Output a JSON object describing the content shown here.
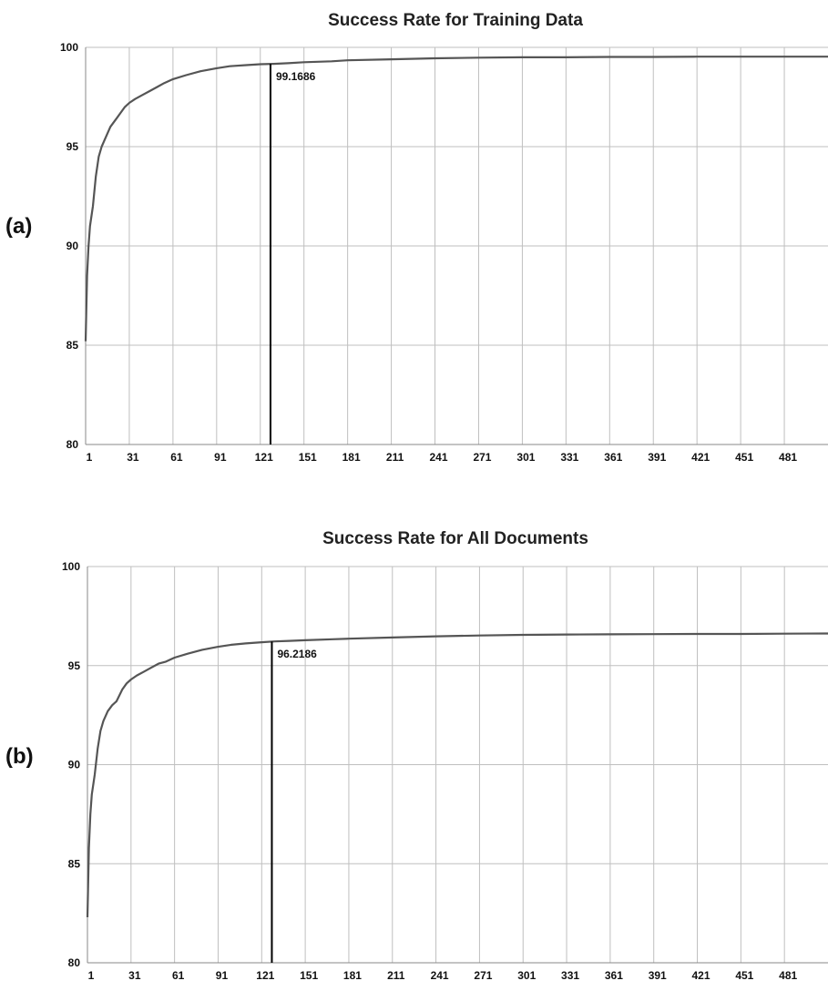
{
  "panels": [
    {
      "label": "(a)",
      "annotation_label": "99.1686"
    },
    {
      "label": "(b)",
      "annotation_label": "96.2186"
    }
  ],
  "chart_data": [
    {
      "type": "line",
      "title": "Success Rate for Training Data",
      "xlabel": "",
      "ylabel": "",
      "ylim": [
        80,
        100
      ],
      "xlim": [
        1,
        511
      ],
      "yticks": [
        "80",
        "85",
        "90",
        "95",
        "100"
      ],
      "xticks": [
        "1",
        "31",
        "61",
        "91",
        "121",
        "151",
        "181",
        "211",
        "241",
        "271",
        "301",
        "331",
        "361",
        "391",
        "421",
        "451",
        "481"
      ],
      "grid": true,
      "line_color": "#555555",
      "marker_line_color": "#000000",
      "series": [
        {
          "x": [
            1,
            2,
            3,
            4,
            5,
            6,
            8,
            10,
            12,
            15,
            18,
            21,
            25,
            28,
            31,
            35,
            40,
            45,
            50,
            55,
            61,
            70,
            80,
            91,
            100,
            110,
            121,
            130,
            140,
            151,
            170,
            181,
            211,
            241,
            271,
            301,
            331,
            361,
            391,
            421,
            451,
            481,
            511
          ],
          "y": [
            85.2,
            88.5,
            90.0,
            91.0,
            91.5,
            92.0,
            93.5,
            94.5,
            95.0,
            95.5,
            96.0,
            96.3,
            96.7,
            97.0,
            97.2,
            97.4,
            97.6,
            97.8,
            98.0,
            98.2,
            98.4,
            98.6,
            98.8,
            98.95,
            99.05,
            99.1,
            99.15,
            99.17,
            99.2,
            99.25,
            99.3,
            99.35,
            99.4,
            99.45,
            99.48,
            99.5,
            99.5,
            99.52,
            99.52,
            99.53,
            99.53,
            99.53,
            99.53
          ]
        }
      ],
      "annotations": [
        {
          "x": 128,
          "y": 99.1686,
          "text": "99.1686"
        }
      ]
    },
    {
      "type": "line",
      "title": "Success Rate for All Documents",
      "xlabel": "",
      "ylabel": "",
      "ylim": [
        80,
        100
      ],
      "xlim": [
        1,
        511
      ],
      "yticks": [
        "80",
        "85",
        "90",
        "95",
        "100"
      ],
      "xticks": [
        "1",
        "31",
        "61",
        "91",
        "121",
        "151",
        "181",
        "211",
        "241",
        "271",
        "301",
        "331",
        "361",
        "391",
        "421",
        "451",
        "481"
      ],
      "grid": true,
      "line_color": "#555555",
      "marker_line_color": "#000000",
      "series": [
        {
          "x": [
            1,
            2,
            3,
            4,
            5,
            6,
            8,
            10,
            12,
            15,
            18,
            21,
            25,
            28,
            31,
            35,
            40,
            45,
            50,
            55,
            61,
            70,
            80,
            91,
            100,
            110,
            121,
            130,
            140,
            151,
            170,
            181,
            211,
            241,
            271,
            301,
            331,
            361,
            391,
            421,
            451,
            481,
            511
          ],
          "y": [
            82.3,
            85.8,
            87.5,
            88.5,
            89.0,
            89.5,
            90.8,
            91.7,
            92.2,
            92.7,
            93.0,
            93.2,
            93.8,
            94.1,
            94.3,
            94.5,
            94.7,
            94.9,
            95.1,
            95.2,
            95.4,
            95.6,
            95.8,
            95.95,
            96.05,
            96.12,
            96.18,
            96.22,
            96.25,
            96.28,
            96.33,
            96.36,
            96.42,
            96.48,
            96.52,
            96.55,
            96.57,
            96.58,
            96.59,
            96.6,
            96.6,
            96.61,
            96.62
          ]
        }
      ],
      "annotations": [
        {
          "x": 128,
          "y": 96.2186,
          "text": "96.2186"
        }
      ]
    }
  ]
}
